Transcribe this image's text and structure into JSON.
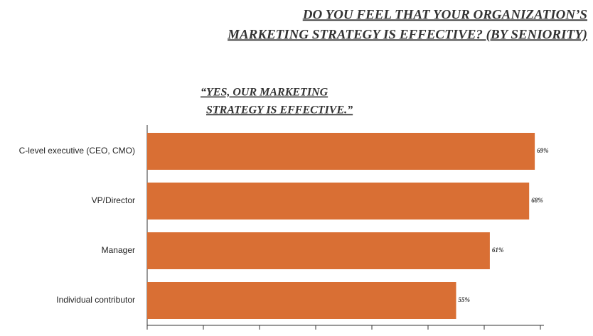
{
  "chart_data": {
    "type": "bar",
    "orientation": "horizontal",
    "title": [
      "DO YOU FEEL THAT YOUR ORGANIZATION’S",
      "MARKETING STRATEGY IS EFFECTIVE? (BY SENIORITY)"
    ],
    "subtitle": [
      "“YES, OUR MARKETING",
      "STRATEGY IS EFFECTIVE.”"
    ],
    "categories": [
      "C-level executive (CEO, CMO)",
      "VP/Director",
      "Manager",
      "Individual contributor"
    ],
    "values": [
      69,
      68,
      61,
      55
    ],
    "value_labels": [
      "69%",
      "68%",
      "61%",
      "55%"
    ],
    "color": "#d96f34",
    "xlim": [
      0,
      70
    ],
    "xticks": [
      0,
      10,
      20,
      30,
      40,
      50,
      60,
      70
    ]
  }
}
